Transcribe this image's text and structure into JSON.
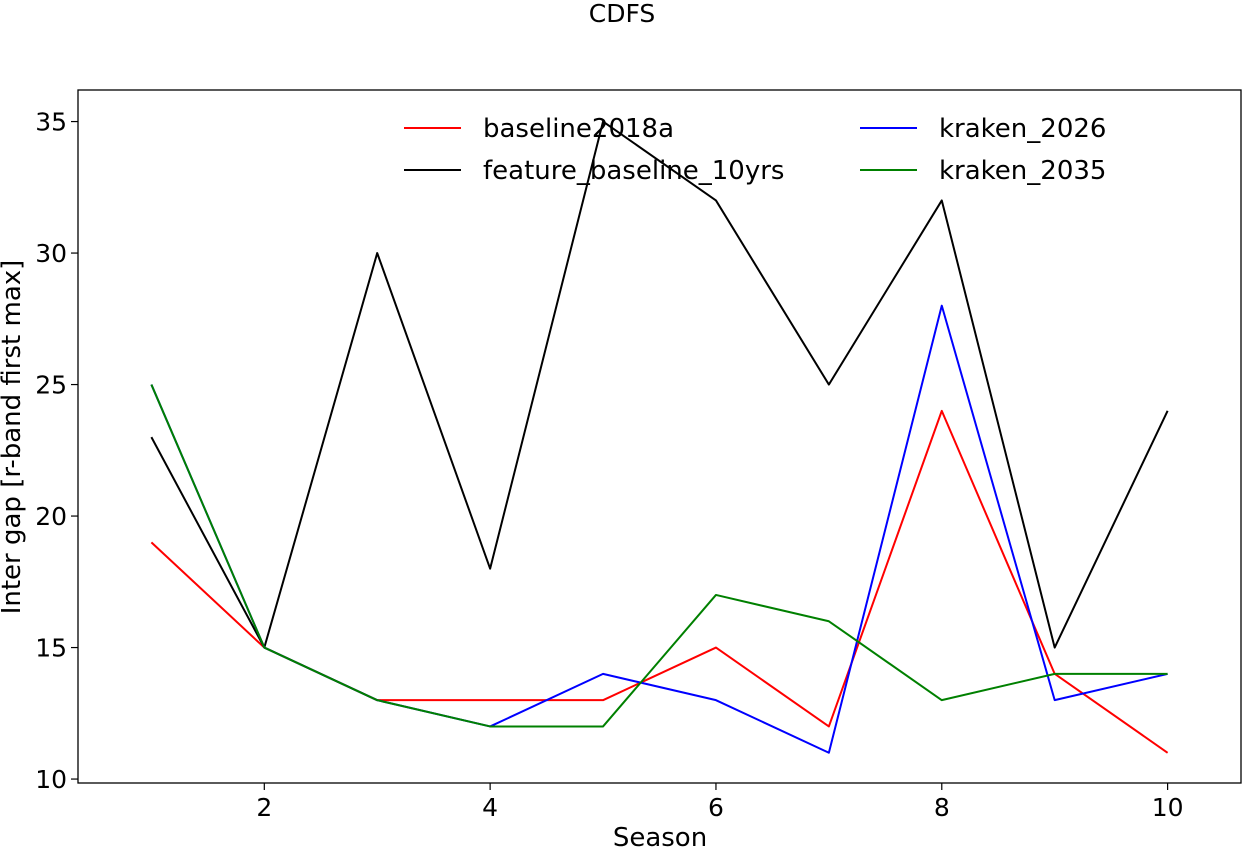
{
  "chart_data": {
    "type": "line",
    "title": "CDFS",
    "xlabel": "Season",
    "ylabel": "Inter gap [r-band first max]",
    "x": [
      1,
      2,
      3,
      4,
      5,
      6,
      7,
      8,
      9,
      10
    ],
    "xlim": [
      0.35,
      10.65
    ],
    "ylim": [
      9.85,
      36.2
    ],
    "xticks": [
      2,
      4,
      6,
      8,
      10
    ],
    "yticks": [
      10,
      15,
      20,
      25,
      30,
      35
    ],
    "grid": false,
    "legend": {
      "placement": "top-center",
      "columns": 2
    },
    "series": [
      {
        "name": "baseline2018a",
        "color": "#ff0000",
        "values": [
          19,
          15,
          13,
          13,
          13,
          15,
          12,
          24,
          14,
          11
        ]
      },
      {
        "name": "feature_baseline_10yrs",
        "color": "#000000",
        "values": [
          23,
          15,
          30,
          18,
          35,
          32,
          25,
          32,
          15,
          24
        ]
      },
      {
        "name": "kraken_2026",
        "color": "#0000ff",
        "values": [
          25,
          15,
          13,
          12,
          14,
          13,
          11,
          28,
          13,
          14
        ]
      },
      {
        "name": "kraken_2035",
        "color": "#008000",
        "values": [
          25,
          15,
          13,
          12,
          12,
          17,
          16,
          13,
          14,
          14
        ]
      }
    ]
  }
}
